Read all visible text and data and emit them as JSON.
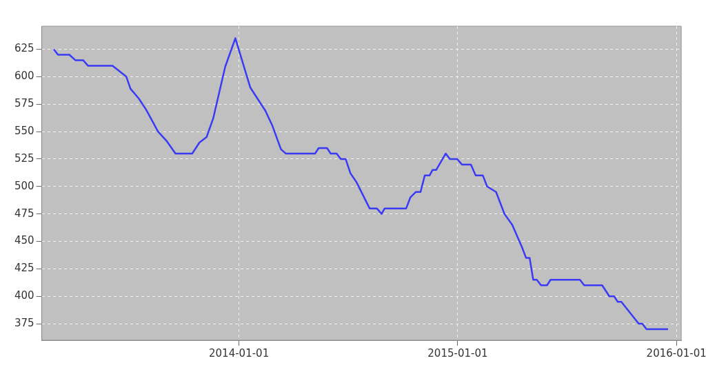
{
  "chart_data": {
    "type": "line",
    "x": [
      "2013-02-26",
      "2013-03-05",
      "2013-03-24",
      "2013-04-03",
      "2013-04-16",
      "2013-04-24",
      "2013-06-04",
      "2013-06-27",
      "2013-07-04",
      "2013-07-18",
      "2013-07-30",
      "2013-08-19",
      "2013-09-03",
      "2013-09-17",
      "2013-10-15",
      "2013-10-27",
      "2013-11-08",
      "2013-11-19",
      "2013-12-09",
      "2013-12-26",
      "2014-01-20",
      "2014-02-14",
      "2014-02-26",
      "2014-03-12",
      "2014-03-20",
      "2014-05-08",
      "2014-05-14",
      "2014-05-28",
      "2014-06-03",
      "2014-06-13",
      "2014-06-20",
      "2014-06-28",
      "2014-07-06",
      "2014-07-16",
      "2014-08-07",
      "2014-08-19",
      "2014-08-27",
      "2014-09-01",
      "2014-10-07",
      "2014-10-14",
      "2014-10-23",
      "2014-10-31",
      "2014-11-07",
      "2014-11-15",
      "2014-11-20",
      "2014-11-26",
      "2014-12-12",
      "2014-12-19",
      "2014-12-31",
      "2015-01-08",
      "2015-01-23",
      "2015-01-31",
      "2015-02-12",
      "2015-02-19",
      "2015-03-06",
      "2015-03-20",
      "2015-04-02",
      "2015-04-18",
      "2015-04-25",
      "2015-05-01",
      "2015-05-07",
      "2015-05-13",
      "2015-05-20",
      "2015-05-30",
      "2015-06-05",
      "2015-07-24",
      "2015-07-31",
      "2015-08-30",
      "2015-09-11",
      "2015-09-19",
      "2015-09-25",
      "2015-10-01",
      "2015-10-30",
      "2015-11-05",
      "2015-11-12",
      "2015-12-18"
    ],
    "series": [
      {
        "color": "#3a3af5",
        "values": [
          625,
          620,
          620,
          615,
          615,
          610,
          610,
          600,
          589,
          580,
          570,
          550,
          541,
          530,
          530,
          540,
          545,
          562,
          609,
          635,
          590,
          569,
          555,
          534,
          530,
          530,
          535,
          535,
          530,
          530,
          525,
          525,
          512,
          504,
          480,
          480,
          475,
          480,
          480,
          490,
          495,
          495,
          510,
          510,
          515,
          515,
          530,
          525,
          525,
          520,
          520,
          510,
          510,
          500,
          495,
          475,
          465,
          445,
          435,
          435,
          415,
          415,
          410,
          410,
          415,
          415,
          410,
          410,
          400,
          400,
          395,
          395,
          375,
          375,
          370,
          370
        ]
      }
    ],
    "xlim": [
      "2013-02-06",
      "2016-01-09"
    ],
    "xticks": [
      "2014-01-01",
      "2015-01-01",
      "2016-01-01"
    ],
    "ylim": [
      360,
      646
    ],
    "yticks": [
      375,
      400,
      425,
      450,
      475,
      500,
      525,
      550,
      575,
      600,
      625
    ],
    "grid": true,
    "legend": false,
    "marker": "none",
    "line_style": "solid"
  }
}
